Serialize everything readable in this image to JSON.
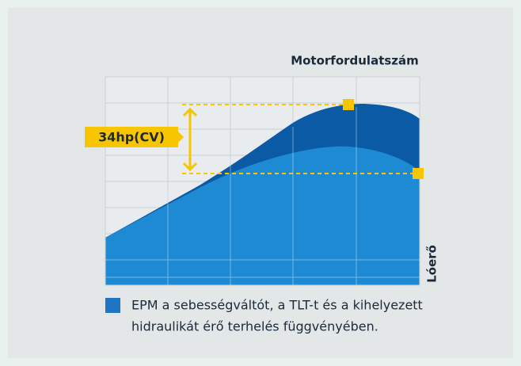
{
  "chart": {
    "x_axis_label": "Motorfordulatszám",
    "y_axis_label": "Lóerő",
    "annotation": "34hp(CV)",
    "legend": {
      "line1": "EPM a sebességváltót, a TLT-t és a kihelyezett",
      "line2": "hidraulikát érő terhelés függvényében."
    }
  }
}
